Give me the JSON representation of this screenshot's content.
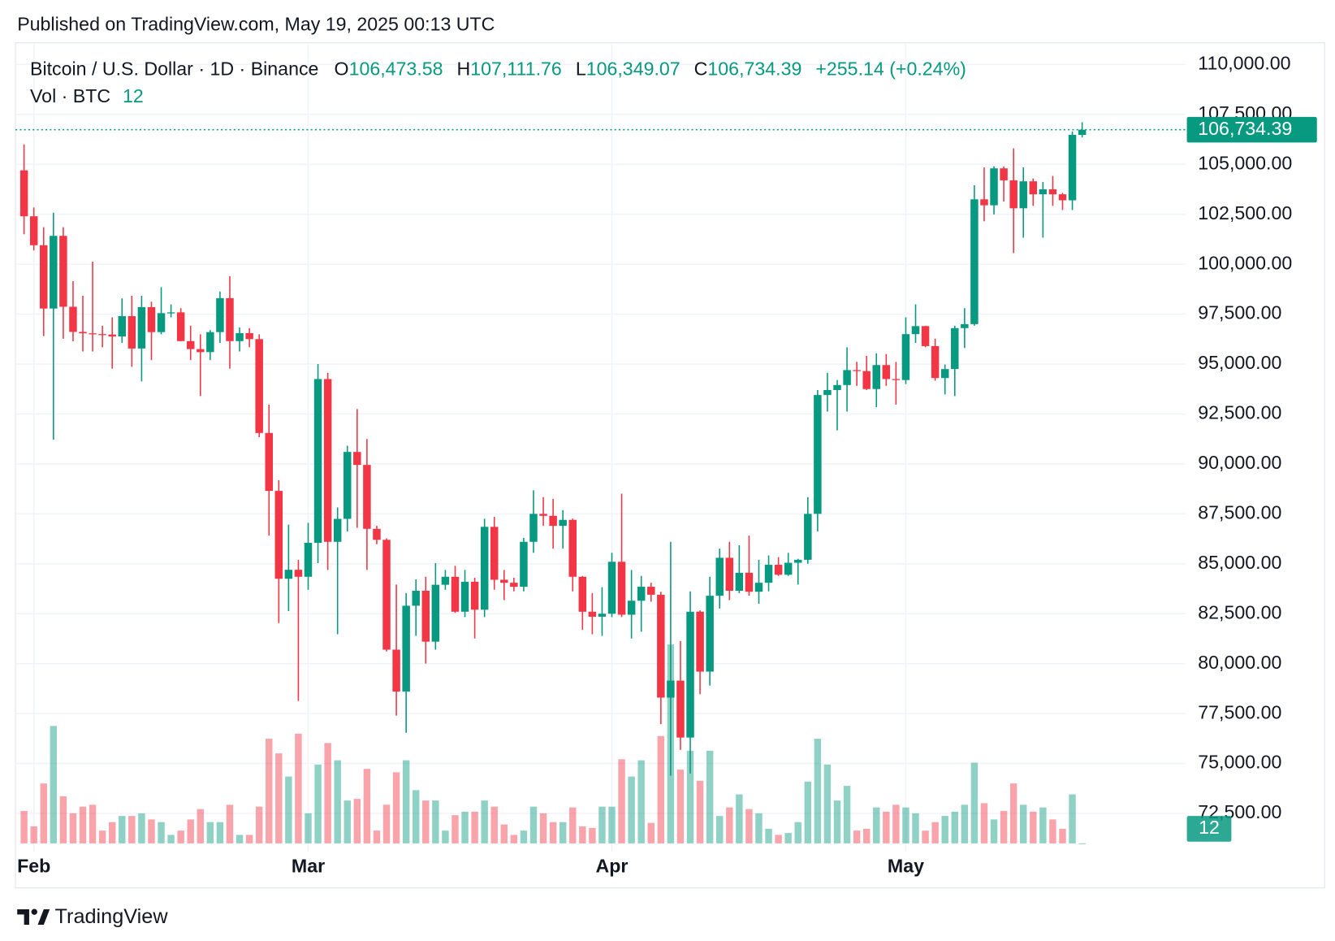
{
  "chart_data": {
    "type": "candlestick",
    "published": "Published on TradingView.com, May 19, 2025 00:13 UTC",
    "title": "Bitcoin / U.S. Dollar · 1D · Binance",
    "legend_values": [
      {
        "key": "O",
        "label": "106,473.58"
      },
      {
        "key": "H",
        "label": "107,111.76"
      },
      {
        "key": "L",
        "label": "106,349.07"
      },
      {
        "key": "C",
        "label": "106,734.39"
      }
    ],
    "change": "+255.14 (+0.24%)",
    "volume_title": "Vol · BTC",
    "volume_label": "12",
    "last_price_label": "106,734.39",
    "brand": "TradingView",
    "up_color": "#089981",
    "down_color": "#f23645",
    "categories": [
      null,
      "Feb",
      null,
      null,
      null,
      null,
      null,
      null,
      null,
      null,
      null,
      null,
      null,
      null,
      null,
      null,
      null,
      null,
      null,
      null,
      null,
      null,
      null,
      null,
      null,
      null,
      null,
      null,
      null,
      "Mar",
      null,
      null,
      null,
      null,
      null,
      null,
      null,
      null,
      null,
      null,
      null,
      null,
      null,
      null,
      null,
      null,
      null,
      null,
      null,
      null,
      null,
      null,
      null,
      null,
      null,
      null,
      null,
      null,
      null,
      null,
      "Apr",
      null,
      null,
      null,
      null,
      null,
      null,
      null,
      null,
      null,
      null,
      null,
      null,
      null,
      null,
      null,
      null,
      null,
      null,
      null,
      null,
      null,
      null,
      null,
      null,
      null,
      null,
      null,
      null,
      null,
      "May",
      null,
      null,
      null,
      null,
      null,
      null,
      null,
      null,
      null,
      null,
      null,
      null,
      null,
      null,
      null,
      null,
      null,
      null
    ],
    "open": [
      104700,
      102400,
      100950,
      97780,
      101420,
      97870,
      96610,
      96540,
      96500,
      96480,
      96380,
      97400,
      95780,
      97850,
      96600,
      97550,
      97590,
      96150,
      95750,
      95600,
      96600,
      98300,
      96150,
      96550,
      96250,
      91550,
      88650,
      84250,
      84700,
      84350,
      86050,
      94250,
      86100,
      87250,
      90600,
      89950,
      86750,
      86200,
      80700,
      78600,
      82900,
      83650,
      81100,
      83950,
      84350,
      82600,
      84100,
      82700,
      86850,
      84200,
      84050,
      83850,
      86100,
      87500,
      87400,
      86900,
      87200,
      84350,
      82600,
      82350,
      82500,
      85100,
      82450,
      83150,
      83850,
      83450,
      78300,
      79150,
      76300,
      82600,
      79600,
      83400,
      85300,
      83650,
      84550,
      83600,
      84050,
      84950,
      84450,
      85050,
      85200,
      87500,
      93450,
      93700,
      93950,
      94700,
      94650,
      93750,
      94950,
      94250,
      94200,
      96500,
      96900,
      95900,
      94300,
      94750,
      96800,
      97000,
      103250,
      102950,
      104800,
      104200,
      102800,
      104150,
      103500,
      103750,
      103500,
      103200,
      106473.58
    ],
    "high": [
      106000,
      102840,
      101850,
      102580,
      101850,
      99150,
      98420,
      100130,
      96920,
      97340,
      98290,
      98420,
      98420,
      98120,
      98850,
      97990,
      97800,
      96920,
      96490,
      96700,
      98630,
      99400,
      96830,
      96800,
      96490,
      92970,
      89190,
      86960,
      85200,
      87050,
      95000,
      94560,
      87820,
      90910,
      92750,
      91250,
      86900,
      86280,
      83960,
      83530,
      84220,
      84350,
      85030,
      84690,
      84900,
      84690,
      84300,
      87260,
      87350,
      84690,
      84300,
      86300,
      88680,
      88340,
      88250,
      87690,
      87260,
      84390,
      83530,
      83830,
      85550,
      88510,
      84690,
      84390,
      84050,
      83600,
      86100,
      81130,
      83620,
      82670,
      84350,
      85760,
      86100,
      85930,
      86410,
      85200,
      85420,
      85330,
      85550,
      85250,
      88340,
      93700,
      94560,
      94200,
      95840,
      95110,
      95410,
      95540,
      95500,
      95110,
      97340,
      97990,
      96920,
      96270,
      94980,
      96920,
      97800,
      103950,
      104850,
      104900,
      104900,
      105800,
      104850,
      104290,
      104120,
      104420,
      103570,
      106650,
      107111.76
    ],
    "low": [
      101500,
      100690,
      96400,
      91210,
      96270,
      96140,
      95630,
      95630,
      95840,
      94770,
      96060,
      94860,
      94130,
      95200,
      96490,
      97340,
      96140,
      95200,
      93400,
      95200,
      96060,
      94770,
      95630,
      95840,
      91340,
      86410,
      82030,
      82630,
      78130,
      83700,
      85030,
      84690,
      81470,
      86620,
      86800,
      84690,
      85980,
      80610,
      77400,
      76540,
      81390,
      80000,
      80700,
      83700,
      82540,
      82330,
      81260,
      82330,
      83700,
      83180,
      83620,
      83620,
      85550,
      86900,
      85760,
      85760,
      83620,
      81690,
      81470,
      81390,
      82330,
      82330,
      81260,
      81600,
      83100,
      76970,
      74390,
      75680,
      74500,
      78470,
      78900,
      82760,
      83180,
      83530,
      83400,
      83000,
      83620,
      84390,
      84390,
      83960,
      85000,
      86620,
      92620,
      91680,
      92620,
      93910,
      93700,
      92840,
      93910,
      92970,
      94000,
      96060,
      95840,
      94170,
      93480,
      93400,
      95800,
      96920,
      102150,
      102490,
      103140,
      100560,
      101330,
      102920,
      101330,
      102920,
      102710,
      102710,
      106349.07
    ],
    "close": [
      102400,
      100950,
      97780,
      101420,
      97870,
      96610,
      96540,
      96500,
      96480,
      96380,
      97400,
      95780,
      97850,
      96600,
      97550,
      97590,
      96150,
      95750,
      95600,
      96600,
      98300,
      96150,
      96550,
      96250,
      91550,
      88650,
      84250,
      84700,
      84350,
      86050,
      94250,
      86100,
      87250,
      90600,
      89950,
      86750,
      86200,
      80700,
      78600,
      82900,
      83650,
      81100,
      83950,
      84350,
      82600,
      84100,
      82700,
      86850,
      84200,
      84050,
      83850,
      86100,
      87500,
      87400,
      86900,
      87200,
      84350,
      82600,
      82350,
      82500,
      85100,
      82450,
      83150,
      83850,
      83450,
      78300,
      79150,
      76300,
      82600,
      79600,
      83400,
      85300,
      83650,
      84550,
      83600,
      84050,
      84950,
      84450,
      85050,
      85200,
      87500,
      93450,
      93700,
      93950,
      94700,
      94650,
      93750,
      94950,
      94250,
      94200,
      96500,
      96900,
      95900,
      94300,
      94750,
      96800,
      97000,
      103250,
      102950,
      104800,
      104200,
      102800,
      104150,
      103500,
      103750,
      103500,
      103200,
      106479.25,
      106734.39
    ],
    "volume": [
      12200,
      6400,
      22500,
      44100,
      17700,
      11300,
      13800,
      14500,
      4800,
      8000,
      10300,
      10300,
      11300,
      9000,
      8000,
      3200,
      4800,
      9000,
      12900,
      8000,
      8000,
      14500,
      3200,
      3200,
      13800,
      39300,
      33800,
      25100,
      41200,
      11300,
      29600,
      37700,
      31200,
      16100,
      16700,
      28000,
      4800,
      14500,
      26700,
      31200,
      20000,
      16100,
      16100,
      4800,
      10600,
      11900,
      11900,
      16100,
      13800,
      7100,
      3200,
      4800,
      13800,
      11300,
      8000,
      8000,
      13500,
      6400,
      5800,
      13800,
      13800,
      31600,
      25100,
      31200,
      7700,
      40300,
      74700,
      27700,
      34800,
      23500,
      34800,
      10300,
      13500,
      18400,
      12900,
      11300,
      5500,
      3200,
      3900,
      8000,
      23200,
      39300,
      29600,
      16100,
      21600,
      4800,
      5500,
      13500,
      11900,
      14500,
      13500,
      11300,
      4800,
      8000,
      10300,
      11900,
      14500,
      30300,
      15100,
      9000,
      12200,
      22500,
      14500,
      11900,
      13500,
      9000,
      5500,
      18400,
      12
    ],
    "ylim": [
      71000,
      111000
    ],
    "yticks": [
      {
        "value": 72500,
        "label": "72,500.00"
      },
      {
        "value": 75000,
        "label": "75,000.00"
      },
      {
        "value": 77500,
        "label": "77,500.00"
      },
      {
        "value": 80000,
        "label": "80,000.00"
      },
      {
        "value": 82500,
        "label": "82,500.00"
      },
      {
        "value": 85000,
        "label": "85,000.00"
      },
      {
        "value": 87500,
        "label": "87,500.00"
      },
      {
        "value": 90000,
        "label": "90,000.00"
      },
      {
        "value": 92500,
        "label": "92,500.00"
      },
      {
        "value": 95000,
        "label": "95,000.00"
      },
      {
        "value": 97500,
        "label": "97,500.00"
      },
      {
        "value": 100000,
        "label": "100,000.00"
      },
      {
        "value": 102500,
        "label": "102,500.00"
      },
      {
        "value": 105000,
        "label": "105,000.00"
      },
      {
        "value": 107500,
        "label": "107,500.00"
      },
      {
        "value": 110000,
        "label": "110,000.00"
      }
    ],
    "y2lim": [
      0,
      300000
    ],
    "grid": true
  }
}
